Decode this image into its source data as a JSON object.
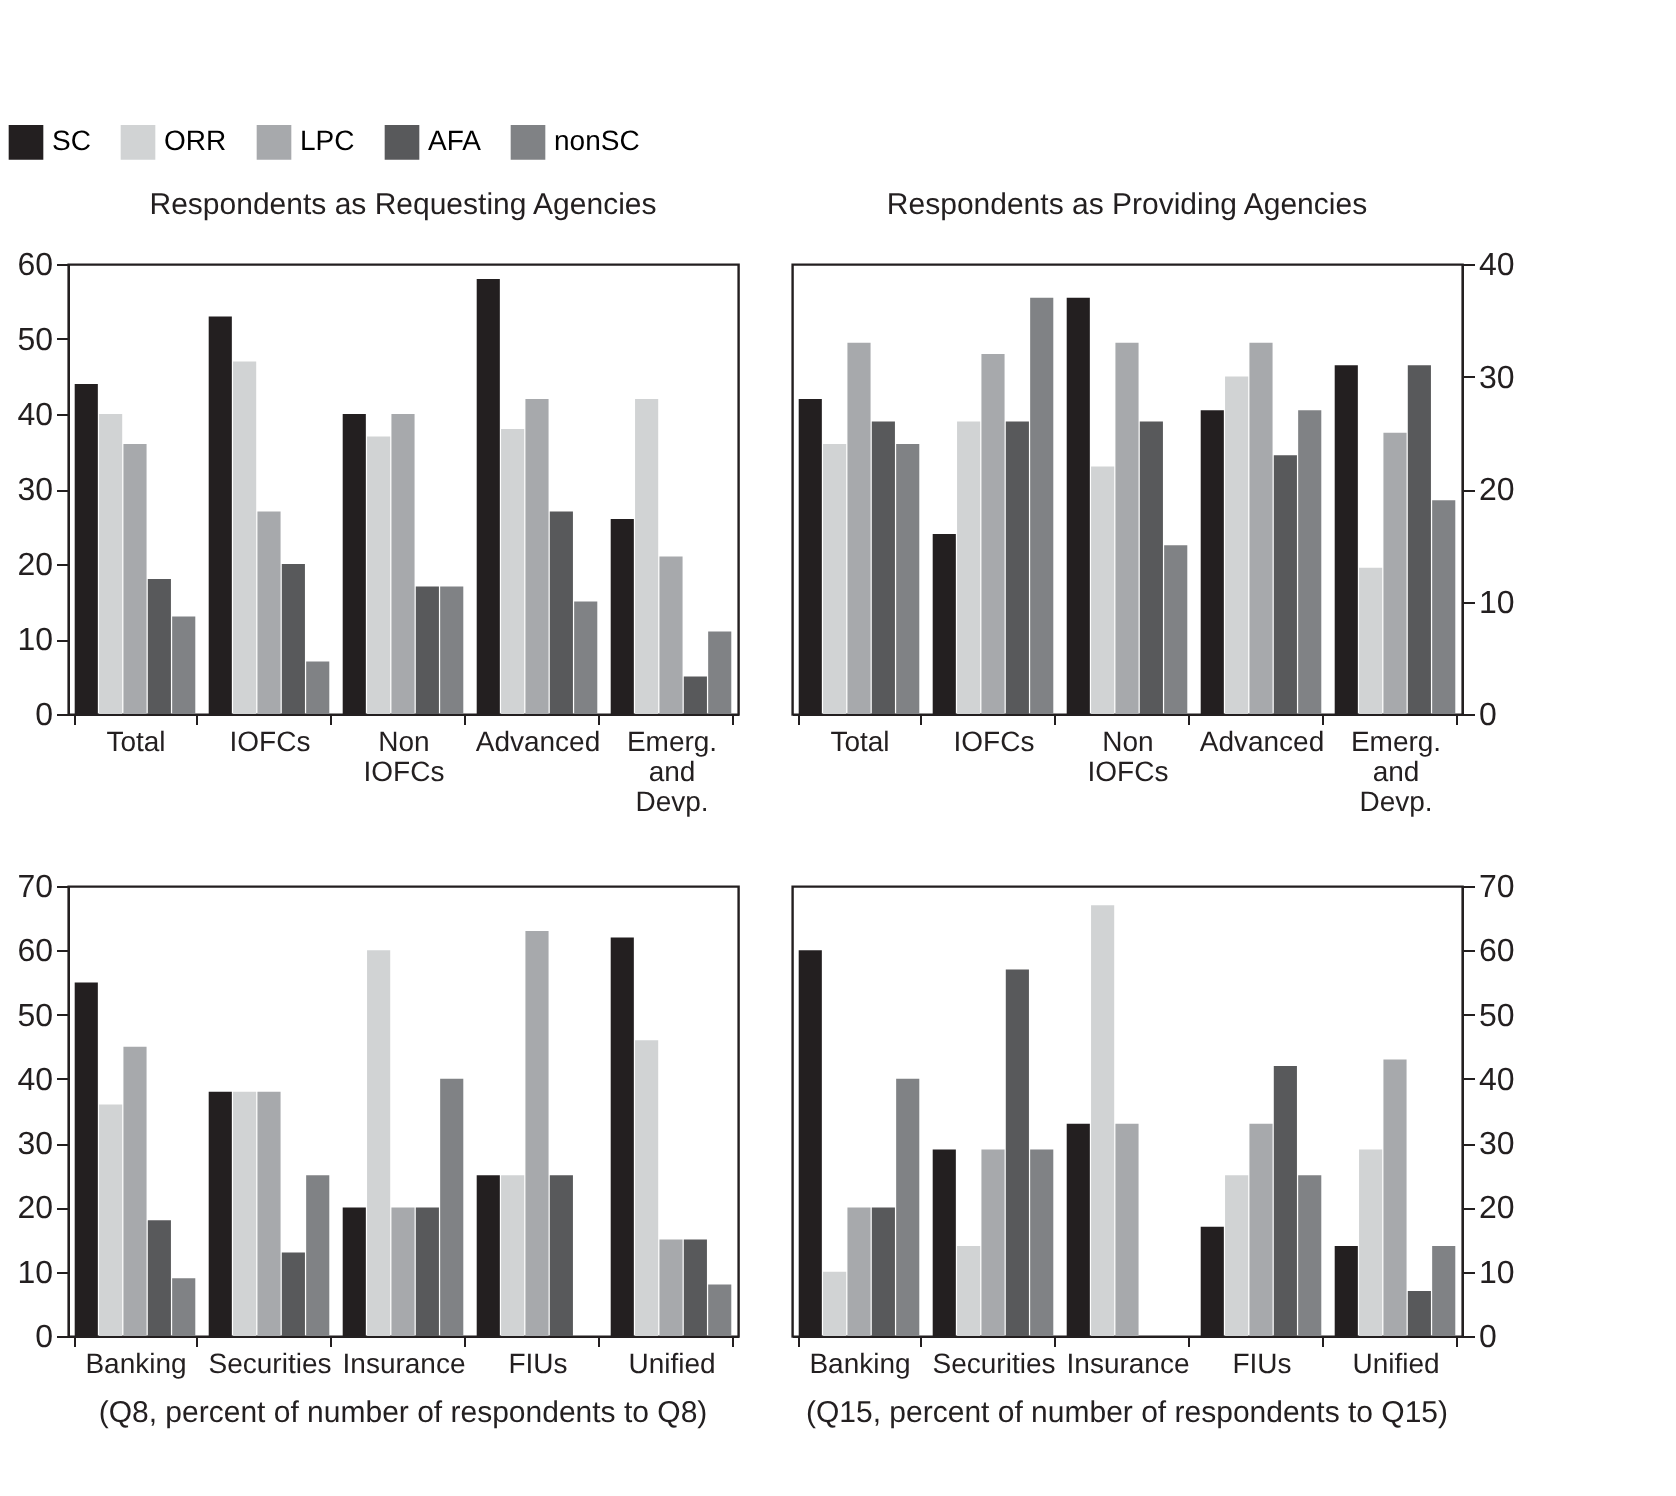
{
  "chart_data": [
    {
      "type": "bar",
      "title": "Respondents as Requesting Agencies",
      "categories": [
        "Total",
        "IOFCs",
        "Non IOFCs",
        "Advanced",
        "Emerg. and Devp."
      ],
      "ylim": [
        0,
        60
      ],
      "yticks": [
        0,
        10,
        20,
        30,
        40,
        50,
        60
      ],
      "legend": "top left",
      "series": [
        {
          "name": "SC",
          "color": "#231f20",
          "values": [
            44,
            53,
            40,
            58,
            26
          ]
        },
        {
          "name": "ORR",
          "color": "#d1d3d4",
          "values": [
            40,
            47,
            37,
            38,
            42
          ]
        },
        {
          "name": "LPC",
          "color": "#a7a9ac",
          "values": [
            36,
            27,
            40,
            42,
            21
          ]
        },
        {
          "name": "AFA",
          "color": "#58595b",
          "values": [
            18,
            20,
            17,
            27,
            5
          ]
        },
        {
          "name": "nonSC",
          "color": "#808285",
          "values": [
            13,
            7,
            17,
            15,
            11
          ]
        }
      ]
    },
    {
      "type": "bar",
      "title": "Respondents as Providing Agencies",
      "categories": [
        "Total",
        "IOFCs",
        "Non IOFCs",
        "Advanced",
        "Emerg. and Devp."
      ],
      "y2lim": [
        0,
        40
      ],
      "y2ticks": [
        0,
        10,
        20,
        30,
        40
      ],
      "series": [
        {
          "color": "#231f20",
          "axis": "y2",
          "values": [
            28,
            16,
            37,
            27,
            31
          ]
        },
        {
          "color": "#d1d3d4",
          "axis": "y2",
          "values": [
            24,
            26,
            22,
            30,
            13
          ]
        },
        {
          "color": "#a7a9ac",
          "axis": "y2",
          "values": [
            33,
            32,
            33,
            33,
            25
          ]
        },
        {
          "color": "#58595b",
          "axis": "y2",
          "values": [
            26,
            26,
            26,
            23,
            31
          ]
        },
        {
          "color": "#808285",
          "axis": "y2",
          "values": [
            24,
            37,
            15,
            27,
            19
          ]
        }
      ]
    },
    {
      "type": "bar",
      "annotations": [
        "(Q8, percent of number of respondents to Q8)"
      ],
      "categories": [
        "Banking",
        "Securities",
        "Insurance",
        "FIUs",
        "Unified"
      ],
      "ylim": [
        0,
        70
      ],
      "yticks": [
        0,
        10,
        20,
        30,
        40,
        50,
        60,
        70
      ],
      "series": [
        {
          "color": "#231f20",
          "values": [
            55,
            38,
            20,
            25,
            62
          ]
        },
        {
          "color": "#d1d3d4",
          "values": [
            36,
            38,
            60,
            25,
            46
          ]
        },
        {
          "color": "#a7a9ac",
          "values": [
            45,
            38,
            20,
            63,
            15
          ]
        },
        {
          "color": "#58595b",
          "values": [
            18,
            13,
            20,
            25,
            15
          ]
        },
        {
          "color": "#808285",
          "values": [
            9,
            25,
            40,
            0,
            8
          ]
        }
      ]
    },
    {
      "type": "bar",
      "annotations": [
        "(Q15, percent of number of respondents to Q15)"
      ],
      "categories": [
        "Banking",
        "Securities",
        "Insurance",
        "FIUs",
        "Unified"
      ],
      "y2lim": [
        0,
        70
      ],
      "y2ticks": [
        0,
        10,
        20,
        30,
        40,
        50,
        60,
        70
      ],
      "series": [
        {
          "color": "#231f20",
          "axis": "y2",
          "values": [
            60,
            29,
            33,
            17,
            14
          ]
        },
        {
          "color": "#d1d3d4",
          "axis": "y2",
          "values": [
            10,
            14,
            67,
            25,
            29
          ]
        },
        {
          "color": "#a7a9ac",
          "axis": "y2",
          "values": [
            20,
            29,
            33,
            33,
            43
          ]
        },
        {
          "color": "#58595b",
          "axis": "y2",
          "values": [
            20,
            57,
            0,
            42,
            7
          ]
        },
        {
          "color": "#808285",
          "axis": "y2",
          "values": [
            40,
            29,
            0,
            25,
            14
          ]
        }
      ]
    }
  ]
}
